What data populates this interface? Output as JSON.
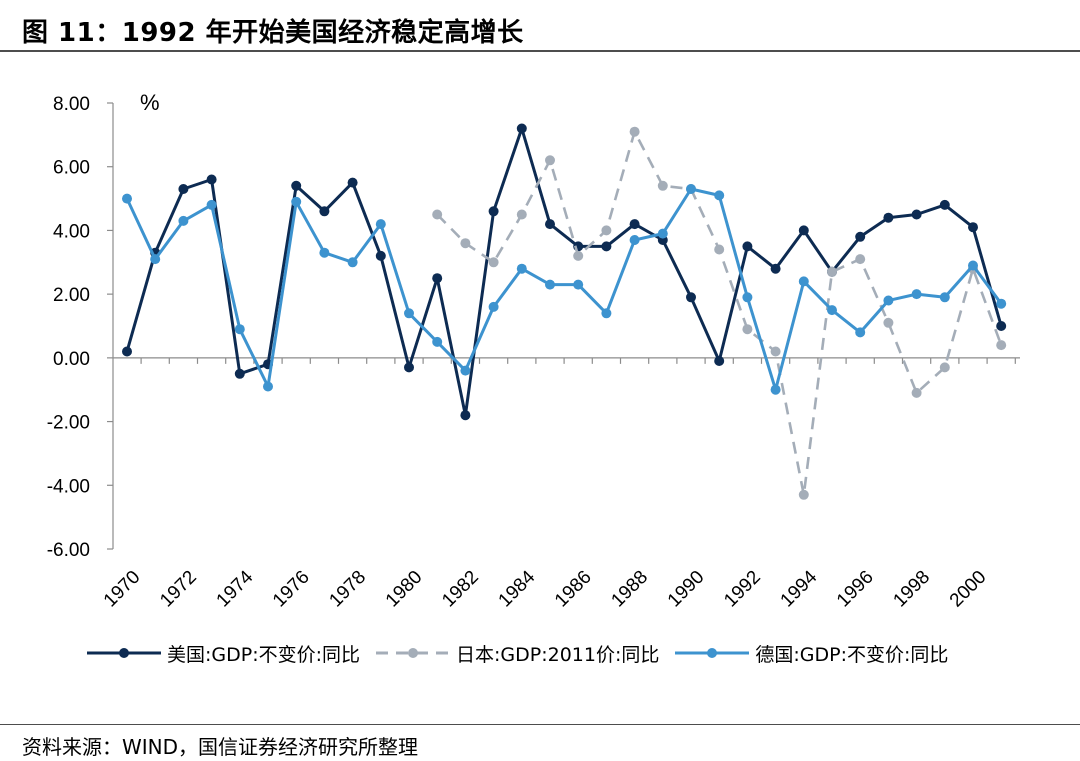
{
  "header": {
    "title": "图 11：1992 年开始美国经济稳定高增长"
  },
  "footer": {
    "source": "资料来源：WIND，国信证券经济研究所整理"
  },
  "chart_data": {
    "type": "line",
    "unit_label": "%",
    "ylim": [
      -6,
      8
    ],
    "yticks": [
      "8.00",
      "6.00",
      "4.00",
      "2.00",
      "0.00",
      "-2.00",
      "-4.00",
      "-6.00"
    ],
    "ytick_values": [
      8,
      6,
      4,
      2,
      0,
      -2,
      -4,
      -6
    ],
    "x": [
      1970,
      1971,
      1972,
      1973,
      1974,
      1975,
      1976,
      1977,
      1978,
      1979,
      1980,
      1981,
      1982,
      1983,
      1984,
      1985,
      1986,
      1987,
      1988,
      1989,
      1990,
      1991,
      1992,
      1993,
      1994,
      1995,
      1996,
      1997,
      1998,
      1999,
      2000,
      2001
    ],
    "xtick_labels": [
      "1970",
      "1972",
      "1974",
      "1976",
      "1978",
      "1980",
      "1982",
      "1984",
      "1986",
      "1988",
      "1990",
      "1992",
      "1994",
      "1996",
      "1998",
      "2000"
    ],
    "legend_position": "bottom",
    "grid": false,
    "series": [
      {
        "name": "美国:GDP:不变价:同比",
        "color": "#0d2b52",
        "dash": false,
        "values": [
          0.2,
          3.3,
          5.3,
          5.6,
          -0.5,
          -0.2,
          5.4,
          4.6,
          5.5,
          3.2,
          -0.3,
          2.5,
          -1.8,
          4.6,
          7.2,
          4.2,
          3.5,
          3.5,
          4.2,
          3.7,
          1.9,
          -0.1,
          3.5,
          2.8,
          4.0,
          2.7,
          3.8,
          4.4,
          4.5,
          4.8,
          4.1,
          1.0
        ]
      },
      {
        "name": "日本:GDP:2011价:同比",
        "color": "#a4adb8",
        "dash": true,
        "values": [
          null,
          null,
          null,
          null,
          null,
          null,
          null,
          null,
          null,
          null,
          null,
          4.5,
          3.6,
          3.0,
          4.5,
          6.2,
          3.2,
          4.0,
          7.1,
          5.4,
          5.3,
          3.4,
          0.9,
          0.2,
          -4.3,
          2.7,
          3.1,
          1.1,
          -1.1,
          -0.3,
          2.8,
          0.4
        ]
      },
      {
        "name": "德国:GDP:不变价:同比",
        "color": "#3d93cf",
        "dash": false,
        "values": [
          5.0,
          3.1,
          4.3,
          4.8,
          0.9,
          -0.9,
          4.9,
          3.3,
          3.0,
          4.2,
          1.4,
          0.5,
          -0.4,
          1.6,
          2.8,
          2.3,
          2.3,
          1.4,
          3.7,
          3.9,
          5.3,
          5.1,
          1.9,
          -1.0,
          2.4,
          1.5,
          0.8,
          1.8,
          2.0,
          1.9,
          2.9,
          1.7
        ]
      }
    ]
  }
}
